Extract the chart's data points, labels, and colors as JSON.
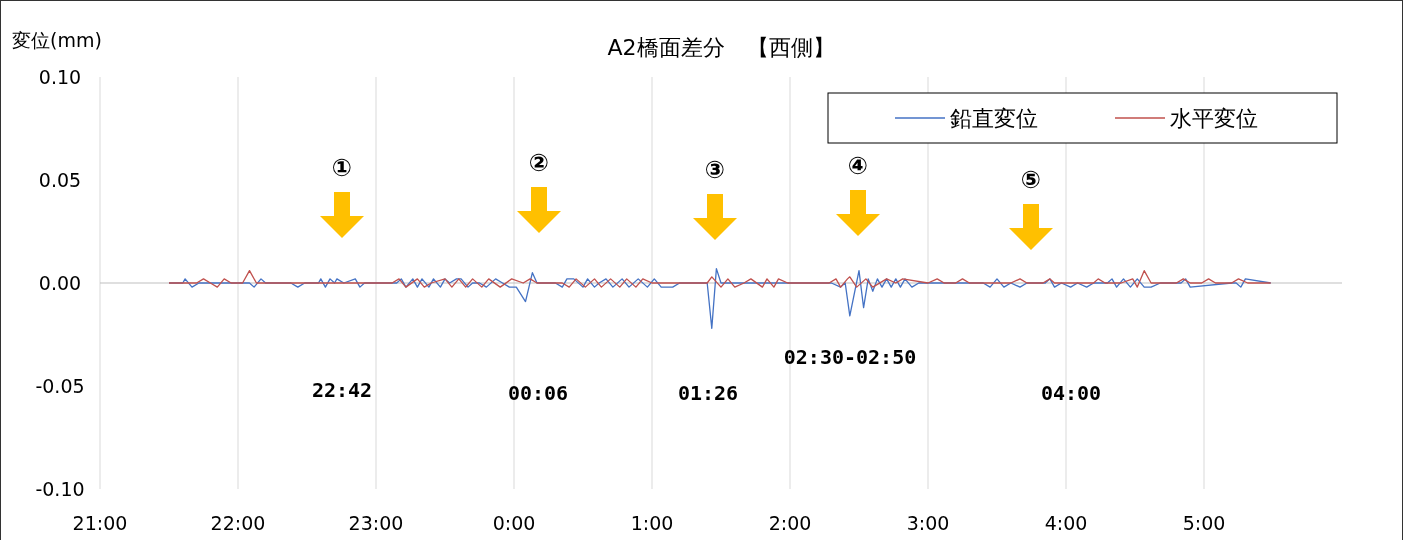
{
  "chart_data": {
    "type": "line",
    "title": "A2橋面差分　【西側】",
    "ylabel": "変位(mm)",
    "xlim": [
      "2000-01-01T21:00",
      "2000-01-02T06:00"
    ],
    "xticks": [
      {
        "value": "2000-01-01T21:00",
        "label": "21:00"
      },
      {
        "value": "2000-01-01T22:00",
        "label": "22:00"
      },
      {
        "value": "2000-01-01T23:00",
        "label": "23:00"
      },
      {
        "value": "2000-01-02T00:00",
        "label": "0:00"
      },
      {
        "value": "2000-01-02T01:00",
        "label": "1:00"
      },
      {
        "value": "2000-01-02T02:00",
        "label": "2:00"
      },
      {
        "value": "2000-01-02T03:00",
        "label": "3:00"
      },
      {
        "value": "2000-01-02T04:00",
        "label": "4:00"
      },
      {
        "value": "2000-01-02T05:00",
        "label": "5:00"
      }
    ],
    "ylim": [
      -0.1,
      0.1
    ],
    "yticks": [
      {
        "value": -0.1,
        "label": "-0.10"
      },
      {
        "value": -0.05,
        "label": "-0.05"
      },
      {
        "value": 0,
        "label": "0.00"
      },
      {
        "value": 0.05,
        "label": "0.05"
      },
      {
        "value": 0.1,
        "label": "0.10"
      }
    ],
    "grid": "x",
    "legend": "top right",
    "line_style": "solid",
    "marker": "none",
    "series": [
      {
        "name": "鉛直変位",
        "color": "#4472c4",
        "x": [
          "2000-01-01T21:30",
          "2000-01-01T21:36",
          "2000-01-01T21:37",
          "2000-01-01T21:40",
          "2000-01-01T21:43",
          "2000-01-01T22:05",
          "2000-01-01T22:07",
          "2000-01-01T22:10",
          "2000-01-01T22:12",
          "2000-01-01T22:23",
          "2000-01-01T22:26",
          "2000-01-01T22:29",
          "2000-01-01T22:35",
          "2000-01-01T22:36",
          "2000-01-01T22:38",
          "2000-01-01T22:40",
          "2000-01-01T22:42",
          "2000-01-01T22:43",
          "2000-01-01T22:46",
          "2000-01-01T22:51",
          "2000-01-01T22:53",
          "2000-01-01T22:55",
          "2000-01-01T23:09",
          "2000-01-01T23:11",
          "2000-01-01T23:13",
          "2000-01-01T23:16",
          "2000-01-01T23:18",
          "2000-01-01T23:20",
          "2000-01-01T23:23",
          "2000-01-01T23:25",
          "2000-01-01T23:28",
          "2000-01-01T23:30",
          "2000-01-01T23:32",
          "2000-01-01T23:35",
          "2000-01-01T23:37",
          "2000-01-01T23:40",
          "2000-01-01T23:42",
          "2000-01-01T23:45",
          "2000-01-01T23:48",
          "2000-01-01T23:52",
          "2000-01-01T23:55",
          "2000-01-01T23:58",
          "2000-01-02T00:01",
          "2000-01-02T00:05",
          "2000-01-02T00:08",
          "2000-01-02T00:10",
          "2000-01-02T00:18",
          "2000-01-02T00:21",
          "2000-01-02T00:23",
          "2000-01-02T00:26",
          "2000-01-02T00:30",
          "2000-01-02T00:32",
          "2000-01-02T00:35",
          "2000-01-02T00:37",
          "2000-01-02T00:40",
          "2000-01-02T00:43",
          "2000-01-02T00:47",
          "2000-01-02T00:50",
          "2000-01-02T00:54",
          "2000-01-02T00:58",
          "2000-01-02T01:01",
          "2000-01-02T01:04",
          "2000-01-02T01:09",
          "2000-01-02T01:12",
          "2000-01-02T01:24",
          "2000-01-02T01:26",
          "2000-01-02T01:28",
          "2000-01-02T01:30",
          "2000-01-02T02:18",
          "2000-01-02T02:22",
          "2000-01-02T02:24",
          "2000-01-02T02:26",
          "2000-01-02T02:30",
          "2000-01-02T02:32",
          "2000-01-02T02:34",
          "2000-01-02T02:36",
          "2000-01-02T02:38",
          "2000-01-02T02:40",
          "2000-01-02T02:42",
          "2000-01-02T02:44",
          "2000-01-02T02:46",
          "2000-01-02T02:48",
          "2000-01-02T02:50",
          "2000-01-02T02:53",
          "2000-01-02T02:56",
          "2000-01-02T03:24",
          "2000-01-02T03:27",
          "2000-01-02T03:30",
          "2000-01-02T03:33",
          "2000-01-02T03:36",
          "2000-01-02T03:40",
          "2000-01-02T03:43",
          "2000-01-02T03:51",
          "2000-01-02T03:53",
          "2000-01-02T03:55",
          "2000-01-02T03:58",
          "2000-01-02T04:02",
          "2000-01-02T04:05",
          "2000-01-02T04:09",
          "2000-01-02T04:12",
          "2000-01-02T04:18",
          "2000-01-02T04:20",
          "2000-01-02T04:22",
          "2000-01-02T04:25",
          "2000-01-02T04:28",
          "2000-01-02T04:31",
          "2000-01-02T04:34",
          "2000-01-02T04:37",
          "2000-01-02T04:41",
          "2000-01-02T04:50",
          "2000-01-02T04:52",
          "2000-01-02T04:54",
          "2000-01-02T05:12",
          "2000-01-02T05:14",
          "2000-01-02T05:16",
          "2000-01-02T05:18",
          "2000-01-02T05:29"
        ],
        "values": [
          0,
          0,
          0.002,
          -0.002,
          0,
          0,
          -0.002,
          0.002,
          0,
          0,
          -0.002,
          0,
          0,
          0.002,
          -0.002,
          0.002,
          0,
          0.002,
          0,
          0.002,
          -0.002,
          0,
          0,
          0.002,
          -0.002,
          0.002,
          -0.002,
          0.002,
          -0.002,
          0.002,
          -0.002,
          0.002,
          0,
          0.002,
          0.002,
          -0.002,
          0,
          0,
          -0.002,
          0.002,
          0,
          -0.002,
          -0.002,
          -0.009,
          0.005,
          0,
          0,
          -0.002,
          0.002,
          0.002,
          -0.002,
          0.002,
          -0.002,
          0,
          0.002,
          -0.002,
          0.002,
          -0.002,
          0.002,
          -0.002,
          0.002,
          -0.002,
          -0.002,
          0,
          0,
          -0.022,
          0.007,
          0,
          0,
          -0.002,
          0,
          -0.016,
          0.006,
          -0.012,
          0.002,
          -0.004,
          0.002,
          -0.002,
          0.002,
          -0.002,
          0.002,
          -0.002,
          0.002,
          -0.002,
          0,
          0,
          -0.002,
          0.002,
          -0.002,
          0,
          -0.002,
          0,
          0,
          0.002,
          -0.002,
          0,
          -0.002,
          0,
          -0.002,
          0,
          0,
          0.002,
          -0.002,
          0.002,
          -0.002,
          0.002,
          -0.002,
          -0.002,
          0,
          0,
          0.002,
          -0.002,
          0,
          0,
          -0.002,
          0.002,
          0
        ]
      },
      {
        "name": "水平変位",
        "color": "#c0504d",
        "x": [
          "2000-01-01T21:30",
          "2000-01-01T21:42",
          "2000-01-01T21:45",
          "2000-01-01T21:48",
          "2000-01-01T21:51",
          "2000-01-01T21:54",
          "2000-01-01T21:57",
          "2000-01-01T22:02",
          "2000-01-01T22:05",
          "2000-01-01T22:08",
          "2000-01-01T23:07",
          "2000-01-01T23:10",
          "2000-01-01T23:13",
          "2000-01-01T23:18",
          "2000-01-01T23:21",
          "2000-01-01T23:24",
          "2000-01-01T23:30",
          "2000-01-01T23:33",
          "2000-01-01T23:36",
          "2000-01-01T23:39",
          "2000-01-01T23:42",
          "2000-01-01T23:46",
          "2000-01-01T23:49",
          "2000-01-01T23:54",
          "2000-01-01T23:59",
          "2000-01-02T00:04",
          "2000-01-02T00:07",
          "2000-01-02T00:10",
          "2000-01-02T00:21",
          "2000-01-02T00:24",
          "2000-01-02T00:27",
          "2000-01-02T00:31",
          "2000-01-02T00:35",
          "2000-01-02T00:38",
          "2000-01-02T00:42",
          "2000-01-02T00:46",
          "2000-01-02T00:49",
          "2000-01-02T00:53",
          "2000-01-02T00:56",
          "2000-01-02T01:00",
          "2000-01-02T01:24",
          "2000-01-02T01:26",
          "2000-01-02T01:30",
          "2000-01-02T01:33",
          "2000-01-02T01:36",
          "2000-01-02T01:40",
          "2000-01-02T01:43",
          "2000-01-02T01:48",
          "2000-01-02T01:50",
          "2000-01-02T01:53",
          "2000-01-02T01:55",
          "2000-01-02T01:59",
          "2000-01-02T02:02",
          "2000-01-02T02:17",
          "2000-01-02T02:20",
          "2000-01-02T02:22",
          "2000-01-02T02:25",
          "2000-01-02T02:26",
          "2000-01-02T02:29",
          "2000-01-02T02:33",
          "2000-01-02T02:36",
          "2000-01-02T02:42",
          "2000-01-02T02:46",
          "2000-01-02T02:49",
          "2000-01-02T03:00",
          "2000-01-02T03:04",
          "2000-01-02T03:07",
          "2000-01-02T03:12",
          "2000-01-02T03:15",
          "2000-01-02T03:18",
          "2000-01-02T03:36",
          "2000-01-02T03:40",
          "2000-01-02T03:43",
          "2000-01-02T03:50",
          "2000-01-02T03:53",
          "2000-01-02T03:55",
          "2000-01-02T04:12",
          "2000-01-02T04:14",
          "2000-01-02T04:17",
          "2000-01-02T04:24",
          "2000-01-02T04:29",
          "2000-01-02T04:31",
          "2000-01-02T04:34",
          "2000-01-02T04:37",
          "2000-01-02T04:48",
          "2000-01-02T04:51",
          "2000-01-02T04:54",
          "2000-01-02T04:59",
          "2000-01-02T05:02",
          "2000-01-02T05:05",
          "2000-01-02T05:12",
          "2000-01-02T05:15",
          "2000-01-02T05:19",
          "2000-01-02T05:29"
        ],
        "values": [
          0,
          0,
          0.002,
          0,
          -0.002,
          0.002,
          0,
          0,
          0.006,
          0,
          0,
          0.002,
          -0.002,
          0.002,
          -0.002,
          0,
          0.002,
          -0.002,
          0.002,
          -0.002,
          0.002,
          -0.002,
          0.002,
          -0.002,
          0.002,
          0,
          0.002,
          0,
          0,
          -0.002,
          0.002,
          -0.002,
          0.002,
          -0.002,
          0.002,
          -0.002,
          0.002,
          -0.002,
          0.002,
          0,
          0,
          0.003,
          -0.002,
          0.002,
          -0.002,
          0,
          0.002,
          -0.002,
          0.002,
          -0.002,
          0.002,
          0,
          0,
          0,
          0.002,
          -0.002,
          0.002,
          0.003,
          -0.002,
          0.002,
          -0.002,
          0.002,
          0,
          0.002,
          0,
          0.002,
          0,
          0,
          0.002,
          0,
          0,
          0.002,
          0,
          0,
          0.002,
          0,
          0,
          0.002,
          0,
          0,
          0.002,
          -0.002,
          0.006,
          0,
          0,
          0.002,
          0,
          0,
          0.002,
          0,
          0,
          0.002,
          0,
          0
        ]
      }
    ],
    "annotations": [
      "①",
      "②",
      "③",
      "④",
      "⑤",
      "22:42",
      "00:06",
      "01:26",
      "02:30-02:50",
      "04:00"
    ]
  }
}
